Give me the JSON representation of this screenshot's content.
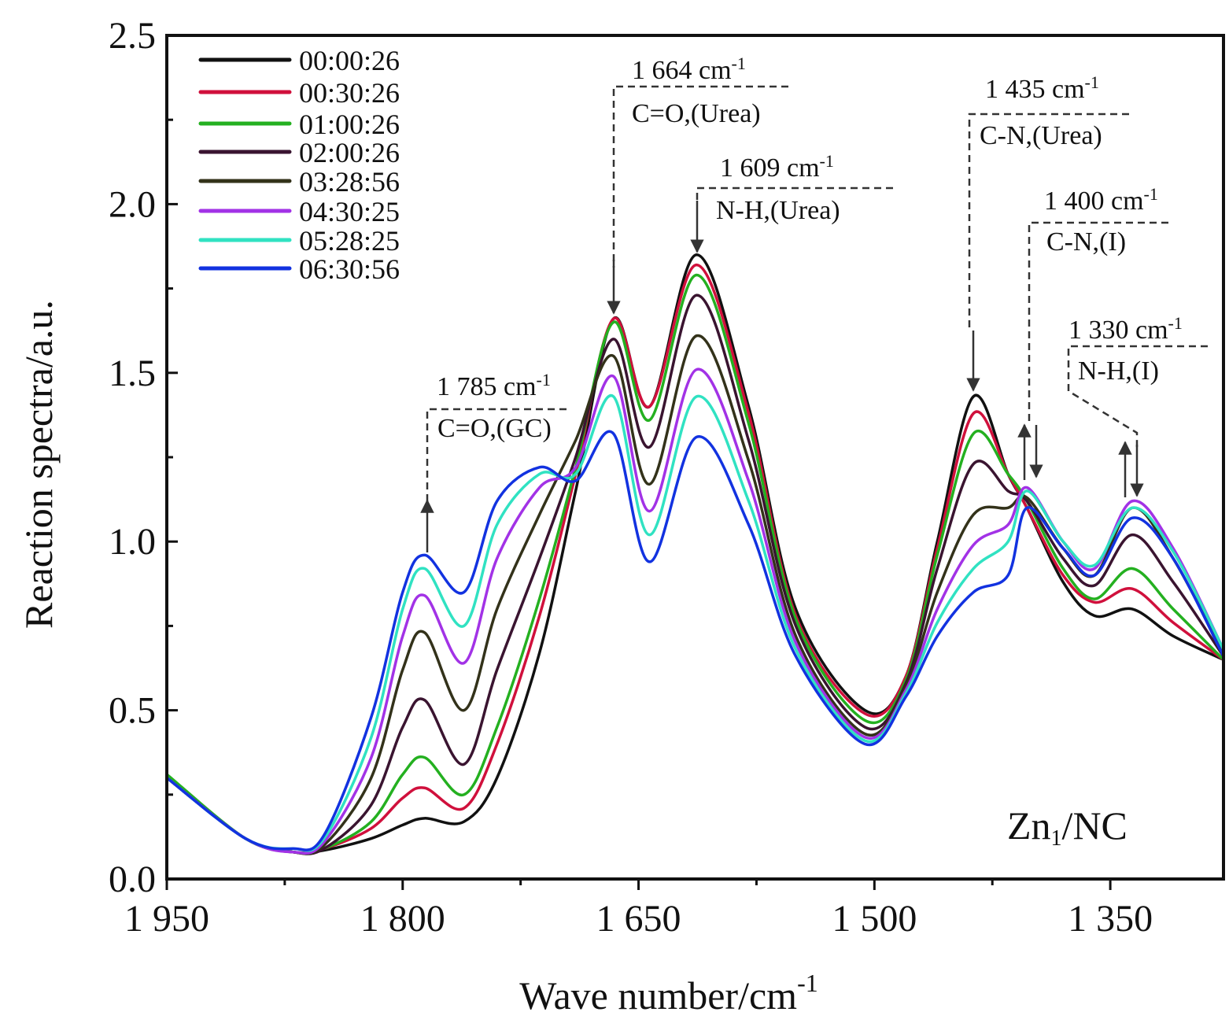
{
  "chart_data": {
    "type": "line",
    "title": "",
    "xlabel": "Wave number/cm",
    "xlabel_sup": "-1",
    "ylabel": "Reaction spectra/a.u.",
    "xlim": [
      1950,
      1278
    ],
    "ylim": [
      0,
      2.5
    ],
    "x_reversed": true,
    "grid": false,
    "legend_placement": "top-left",
    "xticks": [
      1950,
      1800,
      1650,
      1500,
      1350
    ],
    "xtick_labels": [
      "1 950",
      "1 800",
      "1 650",
      "1 500",
      "1 350"
    ],
    "yticks": [
      0,
      0.5,
      1.0,
      1.5,
      2.0,
      2.5
    ],
    "ytick_labels": [
      "0.0",
      "0.5",
      "1.0",
      "1.5",
      "2.0",
      "2.5"
    ],
    "x": [
      1950,
      1900,
      1870,
      1850,
      1820,
      1800,
      1786,
      1761,
      1740,
      1713,
      1690,
      1666,
      1643,
      1613,
      1580,
      1550,
      1506,
      1480,
      1460,
      1437,
      1415,
      1403,
      1380,
      1360,
      1336,
      1310,
      1278
    ],
    "series": [
      {
        "name": "00:00:26",
        "color": "#111111",
        "values": [
          0.3,
          0.12,
          0.08,
          0.085,
          0.12,
          0.16,
          0.18,
          0.17,
          0.3,
          0.67,
          1.15,
          1.66,
          1.4,
          1.85,
          1.4,
          0.8,
          0.5,
          0.6,
          1.0,
          1.43,
          1.2,
          1.1,
          0.88,
          0.78,
          0.8,
          0.72,
          0.65
        ]
      },
      {
        "name": "00:30:26",
        "color": "#d0103c",
        "values": [
          0.3,
          0.12,
          0.08,
          0.09,
          0.15,
          0.24,
          0.27,
          0.21,
          0.4,
          0.78,
          1.2,
          1.66,
          1.4,
          1.82,
          1.38,
          0.78,
          0.49,
          0.6,
          0.98,
          1.38,
          1.2,
          1.1,
          0.9,
          0.82,
          0.86,
          0.76,
          0.65
        ]
      },
      {
        "name": "01:00:26",
        "color": "#24b020",
        "values": [
          0.31,
          0.12,
          0.08,
          0.09,
          0.17,
          0.31,
          0.36,
          0.25,
          0.45,
          0.83,
          1.22,
          1.65,
          1.36,
          1.79,
          1.35,
          0.77,
          0.47,
          0.59,
          0.96,
          1.32,
          1.2,
          1.12,
          0.92,
          0.83,
          0.92,
          0.8,
          0.65
        ]
      },
      {
        "name": "02:00:26",
        "color": "#3a1430",
        "values": [
          0.3,
          0.12,
          0.08,
          0.09,
          0.22,
          0.45,
          0.53,
          0.34,
          0.62,
          0.95,
          1.25,
          1.6,
          1.28,
          1.73,
          1.3,
          0.75,
          0.45,
          0.58,
          0.92,
          1.23,
          1.15,
          1.12,
          0.95,
          0.87,
          1.02,
          0.88,
          0.66
        ]
      },
      {
        "name": "03:28:56",
        "color": "#33321a",
        "values": [
          0.3,
          0.12,
          0.08,
          0.1,
          0.3,
          0.62,
          0.73,
          0.5,
          0.8,
          1.08,
          1.3,
          1.55,
          1.17,
          1.61,
          1.24,
          0.72,
          0.43,
          0.57,
          0.85,
          1.08,
          1.1,
          1.13,
          0.98,
          0.9,
          1.1,
          0.95,
          0.67
        ]
      },
      {
        "name": "04:30:25",
        "color": "#a232e6",
        "values": [
          0.3,
          0.12,
          0.08,
          0.11,
          0.36,
          0.72,
          0.84,
          0.64,
          0.95,
          1.16,
          1.22,
          1.49,
          1.09,
          1.51,
          1.18,
          0.7,
          0.42,
          0.56,
          0.8,
          0.99,
          1.05,
          1.16,
          1.0,
          0.92,
          1.12,
          0.98,
          0.68
        ]
      },
      {
        "name": "05:28:25",
        "color": "#30e2c2",
        "values": [
          0.3,
          0.12,
          0.09,
          0.12,
          0.42,
          0.8,
          0.92,
          0.75,
          1.05,
          1.2,
          1.2,
          1.43,
          1.02,
          1.43,
          1.12,
          0.68,
          0.41,
          0.55,
          0.76,
          0.92,
          1.0,
          1.15,
          1.0,
          0.93,
          1.1,
          0.97,
          0.68
        ]
      },
      {
        "name": "06:30:56",
        "color": "#1232e0",
        "values": [
          0.3,
          0.12,
          0.09,
          0.13,
          0.48,
          0.85,
          0.96,
          0.85,
          1.12,
          1.22,
          1.18,
          1.32,
          0.94,
          1.31,
          1.05,
          0.66,
          0.4,
          0.54,
          0.72,
          0.85,
          0.9,
          1.1,
          0.98,
          0.9,
          1.07,
          0.95,
          0.66
        ]
      }
    ],
    "annotations": [
      {
        "wavenumber": "1 785 cm",
        "sup": "-1",
        "assignment": "C=O,(GC)"
      },
      {
        "wavenumber": "1 664 cm",
        "sup": "-1",
        "assignment": "C=O,(Urea)"
      },
      {
        "wavenumber": "1 609 cm",
        "sup": "-1",
        "assignment": "N-H,(Urea)"
      },
      {
        "wavenumber": "1 435 cm",
        "sup": "-1",
        "assignment": "C-N,(Urea)"
      },
      {
        "wavenumber": "1 400 cm",
        "sup": "-1",
        "assignment": "C-N,(I)"
      },
      {
        "wavenumber": "1 330 cm",
        "sup": "-1",
        "assignment": "N-H,(I)"
      }
    ],
    "sample_label": "Zn",
    "sample_sub": "1",
    "sample_suffix": "/NC"
  }
}
